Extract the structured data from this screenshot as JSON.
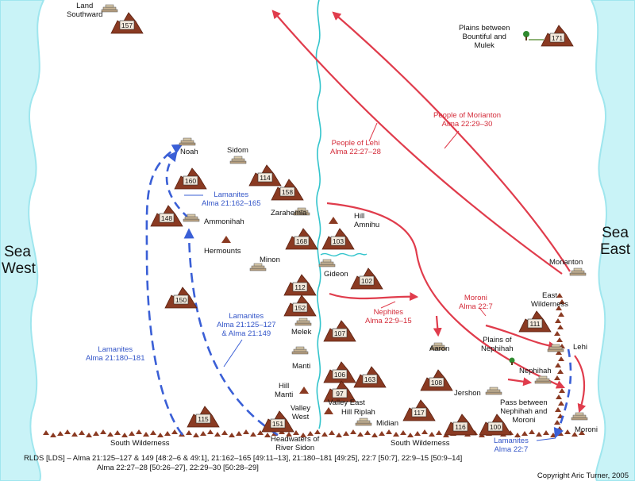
{
  "seas": {
    "west": [
      "Sea",
      "West"
    ],
    "east": [
      "Sea",
      "East"
    ]
  },
  "places": {
    "land_southward": [
      "Land",
      "Southward"
    ],
    "noah": "Noah",
    "sidom": "Sidom",
    "ammonihah": "Ammonihah",
    "zarahemla": "Zarahemla",
    "hermounts": "Hermounts",
    "minon": "Minon",
    "melek": "Melek",
    "manti": "Manti",
    "hill_manti": [
      "Hill",
      "Manti"
    ],
    "valley_west": [
      "Valley",
      "West"
    ],
    "hill_amnihu": [
      "Hill",
      "Amnihu"
    ],
    "gideon": "Gideon",
    "valley_east": "Valley East",
    "hill_riplah": "Hill Riplah",
    "midian": "Midian",
    "headwaters": [
      "Headwaters of",
      "River Sidon"
    ],
    "south_wilderness_left": "South Wilderness",
    "south_wilderness_right": "South Wilderness",
    "aaron": "Aaron",
    "jershon": "Jershon",
    "morianton": "Morianton",
    "east_wilderness": [
      "East",
      "Wilderness"
    ],
    "plains_nephihah": [
      "Plains of",
      "Nephihah"
    ],
    "nephihah": "Nephihah",
    "lehi": "Lehi",
    "moroni": "Moroni",
    "pass": [
      "Pass between",
      "Nephihah and",
      "Moroni"
    ],
    "plains_bountiful": [
      "Plains between",
      "Bountiful and",
      "Mulek"
    ]
  },
  "routes": {
    "lamanites_162": [
      "Lamanites",
      "Alma 21:162–165"
    ],
    "lamanites_125": [
      "Lamanites",
      "Alma 21:125–127",
      "& Alma 21:149"
    ],
    "lamanites_180": [
      "Lamanites",
      "Alma 21:180–181"
    ],
    "lamanites_227": [
      "Lamanites",
      "Alma 22:7"
    ],
    "people_lehi": [
      "People of Lehi",
      "Alma 22:27–28"
    ],
    "people_morianton": [
      "People of Morianton",
      "Alma 22:29–30"
    ],
    "nephites": [
      "Nephites",
      "Alma 22:9–15"
    ],
    "moroni_route": [
      "Moroni",
      "Alma 22:7"
    ]
  },
  "hills": [
    {
      "num": "157",
      "name": "hill-157"
    },
    {
      "num": "160",
      "name": "hill-160"
    },
    {
      "num": "148",
      "name": "hill-148"
    },
    {
      "num": "114",
      "name": "hill-114"
    },
    {
      "num": "158",
      "name": "hill-158"
    },
    {
      "num": "168",
      "name": "hill-168"
    },
    {
      "num": "103",
      "name": "hill-103"
    },
    {
      "num": "102",
      "name": "hill-102"
    },
    {
      "num": "112",
      "name": "hill-112"
    },
    {
      "num": "152",
      "name": "hill-152"
    },
    {
      "num": "150",
      "name": "hill-150"
    },
    {
      "num": "107",
      "name": "hill-107"
    },
    {
      "num": "106",
      "name": "hill-106"
    },
    {
      "num": "163",
      "name": "hill-163"
    },
    {
      "num": "97",
      "name": "hill-97"
    },
    {
      "num": "115",
      "name": "hill-115"
    },
    {
      "num": "151",
      "name": "hill-151"
    },
    {
      "num": "117",
      "name": "hill-117"
    },
    {
      "num": "116",
      "name": "hill-116"
    },
    {
      "num": "100",
      "name": "hill-100"
    },
    {
      "num": "108",
      "name": "hill-108"
    },
    {
      "num": "111",
      "name": "hill-111"
    },
    {
      "num": "171",
      "name": "hill-171"
    }
  ],
  "footer": {
    "line1": "RLDS [LDS] – Alma 21:125–127 & 149 [48:2–6 & 49:1], 21:162–165 [49:11–13], 21:180–181 [49:25], 22:7 [50:7], 22:9–15 [50:9–14]",
    "line2": "Alma 22:27–28 [50:26–27], 22:29–30 [50:28–29]",
    "copyright": "Copyright Aric Turner, 2005"
  },
  "colors": {
    "sea": "#c9f3f7",
    "sea_edge": "#9fe6ee",
    "river": "#33c4cc",
    "red_route": "#e03c4c",
    "blue_route": "#3a5fd6",
    "mountain": "#8a3a22",
    "city": "#c8b494"
  }
}
